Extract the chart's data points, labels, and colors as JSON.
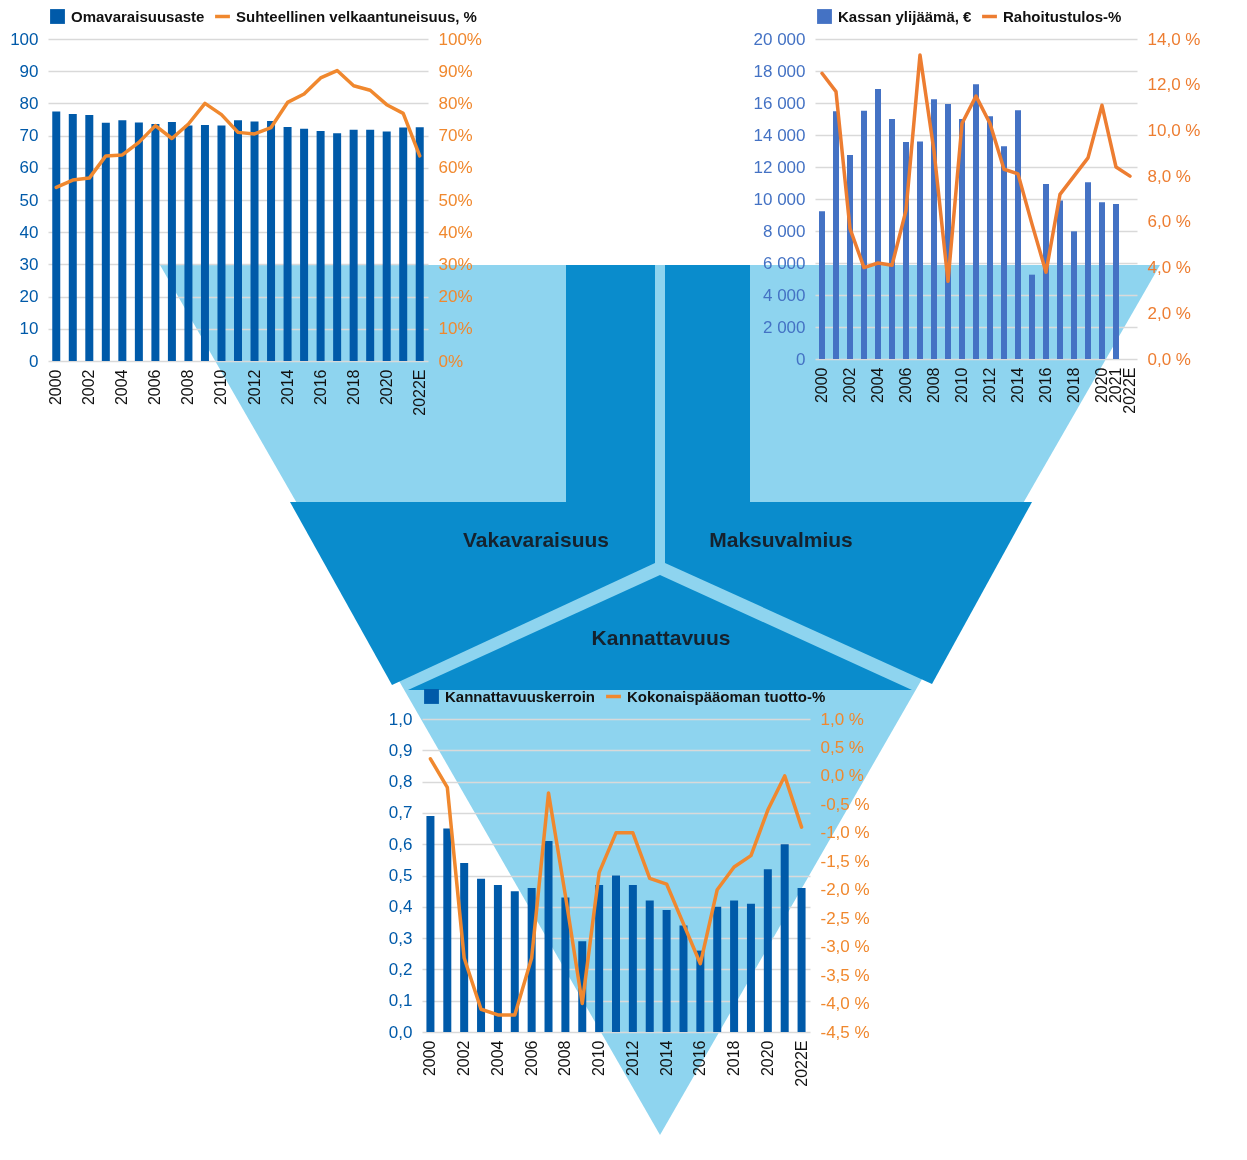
{
  "chart_data": [
    {
      "type": "bar",
      "categories": [
        "2000",
        null,
        "2002",
        null,
        "2004",
        null,
        "2006",
        null,
        "2008",
        null,
        "2010",
        null,
        "2012",
        null,
        "2014",
        null,
        "2016",
        null,
        "2018",
        null,
        "2020",
        null,
        "2022E"
      ],
      "series": [
        {
          "name": "Omavaraisuusaste",
          "color": "#005aa9",
          "values": [
            77.5,
            76.7,
            76.4,
            74.0,
            74.8,
            74.1,
            73.6,
            74.2,
            73.1,
            73.3,
            73.1,
            74.8,
            74.4,
            74.5,
            72.7,
            72.1,
            71.4,
            70.7,
            71.8,
            71.8,
            71.3,
            72.5,
            72.6
          ]
        },
        {
          "name": "Suhteellinen velkaantuneisuus, %",
          "type": "line",
          "axis": "y2",
          "color": "#f0882e",
          "values": [
            53.9,
            56.2,
            56.8,
            63.7,
            64.0,
            67.9,
            73.1,
            69.1,
            73.6,
            80.0,
            76.5,
            71.0,
            70.5,
            72.5,
            80.3,
            82.9,
            87.9,
            90.2,
            85.5,
            84.1,
            79.6,
            76.9,
            63.7
          ]
        }
      ],
      "ylim": [
        0,
        100
      ],
      "yticks": [
        0,
        10,
        20,
        30,
        40,
        50,
        60,
        70,
        80,
        90,
        100
      ],
      "y2lim": [
        0,
        100
      ],
      "y2ticks": [
        {
          "value": 0,
          "label": "0%"
        },
        {
          "value": 10,
          "label": "10%"
        },
        {
          "value": 20,
          "label": "20%"
        },
        {
          "value": 30,
          "label": "30%"
        },
        {
          "value": 40,
          "label": "40%"
        },
        {
          "value": 50,
          "label": "50%"
        },
        {
          "value": 60,
          "label": "60%"
        },
        {
          "value": 70,
          "label": "70%"
        },
        {
          "value": 80,
          "label": "80%"
        },
        {
          "value": 90,
          "label": "90%"
        },
        {
          "value": 100,
          "label": "100%"
        }
      ],
      "grid": "y",
      "legend": "top",
      "annotations": [
        "Vakavaraisuus"
      ]
    },
    {
      "type": "bar",
      "categories": [
        "2000",
        null,
        "2002",
        null,
        "2004",
        null,
        "2006",
        null,
        "2008",
        null,
        "2010",
        null,
        "2012",
        null,
        "2014",
        null,
        "2016",
        null,
        "2018",
        null,
        "2020",
        "2021",
        "2022E"
      ],
      "series": [
        {
          "name": "Kassan ylijäämä, €",
          "color": "#4472c4",
          "values": [
            9230,
            15480,
            12750,
            15520,
            16880,
            15000,
            13560,
            13600,
            16230,
            15940,
            15000,
            17170,
            15170,
            13290,
            15540,
            5270,
            10940,
            9900,
            7980,
            11040,
            9790,
            9690,
            null
          ]
        },
        {
          "name": "Rahoitustulos-%",
          "type": "line",
          "axis": "y2",
          "color": "#ed7d31",
          "values": [
            12.5,
            11.7,
            5.7,
            4.0,
            4.2,
            4.1,
            6.5,
            13.3,
            9.1,
            3.4,
            10.3,
            11.5,
            10.3,
            8.3,
            8.1,
            5.9,
            3.8,
            7.2,
            8.0,
            8.8,
            11.1,
            8.4,
            8.0
          ]
        }
      ],
      "ylim": [
        0,
        20000
      ],
      "yticks": [
        0,
        {
          "value": 2000,
          "label": "2 000"
        },
        {
          "value": 4000,
          "label": "4 000"
        },
        {
          "value": 6000,
          "label": "6 000"
        },
        {
          "value": 8000,
          "label": "8 000"
        },
        {
          "value": 10000,
          "label": "10 000"
        },
        {
          "value": 12000,
          "label": "12 000"
        },
        {
          "value": 14000,
          "label": "14 000"
        },
        {
          "value": 16000,
          "label": "16 000"
        },
        {
          "value": 18000,
          "label": "18 000"
        },
        {
          "value": 20000,
          "label": "20 000"
        }
      ],
      "y2lim": [
        0,
        14
      ],
      "y2ticks": [
        {
          "value": 0,
          "label": "0,0 %"
        },
        {
          "value": 2,
          "label": "2,0 %"
        },
        {
          "value": 4,
          "label": "4,0 %"
        },
        {
          "value": 6,
          "label": "6,0 %"
        },
        {
          "value": 8,
          "label": "8,0 %"
        },
        {
          "value": 10,
          "label": "10,0 %"
        },
        {
          "value": 12,
          "label": "12,0 %"
        },
        {
          "value": 14,
          "label": "14,0 %"
        }
      ],
      "grid": "y",
      "legend": "top",
      "annotations": [
        "Maksuvalmius"
      ]
    },
    {
      "type": "bar",
      "categories": [
        "2000",
        null,
        "2002",
        null,
        "2004",
        null,
        "2006",
        null,
        "2008",
        null,
        "2010",
        null,
        "2012",
        null,
        "2014",
        null,
        "2016",
        null,
        "2018",
        null,
        "2020",
        null,
        "2022E"
      ],
      "series": [
        {
          "name": "Kannattavuuskerroin",
          "color": "#005aa9",
          "values": [
            0.69,
            0.65,
            0.54,
            0.49,
            0.47,
            0.45,
            0.46,
            0.61,
            0.43,
            0.29,
            0.47,
            0.5,
            0.47,
            0.42,
            0.39,
            0.34,
            0.26,
            0.4,
            0.42,
            0.41,
            0.52,
            0.6,
            0.46
          ]
        },
        {
          "name": "Kokonaispääoman tuotto-%",
          "type": "line",
          "axis": "y2",
          "color": "#f0882e",
          "values": [
            0.3,
            -0.2,
            -3.2,
            -4.1,
            -4.2,
            -4.2,
            -3.2,
            -0.3,
            -2.1,
            -4.0,
            -1.7,
            -1.0,
            -1.0,
            -1.8,
            -1.9,
            -2.6,
            -3.3,
            -2.0,
            -1.6,
            -1.4,
            -0.6,
            0.0,
            -0.9
          ]
        }
      ],
      "ylim": [
        0,
        1
      ],
      "yticks": [
        {
          "value": 0,
          "label": "0,0"
        },
        {
          "value": 0.1,
          "label": "0,1"
        },
        {
          "value": 0.2,
          "label": "0,2"
        },
        {
          "value": 0.3,
          "label": "0,3"
        },
        {
          "value": 0.4,
          "label": "0,4"
        },
        {
          "value": 0.5,
          "label": "0,5"
        },
        {
          "value": 0.6,
          "label": "0,6"
        },
        {
          "value": 0.7,
          "label": "0,7"
        },
        {
          "value": 0.8,
          "label": "0,8"
        },
        {
          "value": 0.9,
          "label": "0,9"
        },
        {
          "value": 1,
          "label": "1,0"
        }
      ],
      "y2lim": [
        -4.5,
        1
      ],
      "y2ticks": [
        {
          "value": 1,
          "label": "1,0 %"
        },
        {
          "value": 0.5,
          "label": "0,5 %"
        },
        {
          "value": 0,
          "label": "0,0 %"
        },
        {
          "value": -0.5,
          "label": "-0,5 %"
        },
        {
          "value": -1,
          "label": "-1,0 %"
        },
        {
          "value": -1.5,
          "label": "-1,5 %"
        },
        {
          "value": -2,
          "label": "-2,0 %"
        },
        {
          "value": -2.5,
          "label": "-2,5 %"
        },
        {
          "value": -3,
          "label": "-3,0 %"
        },
        {
          "value": -3.5,
          "label": "-3,5 %"
        },
        {
          "value": -4,
          "label": "-4,0 %"
        },
        {
          "value": -4.5,
          "label": "-4,5 %"
        }
      ],
      "grid": "y",
      "legend": "top",
      "annotations": [
        "Kannattavuus"
      ]
    }
  ]
}
